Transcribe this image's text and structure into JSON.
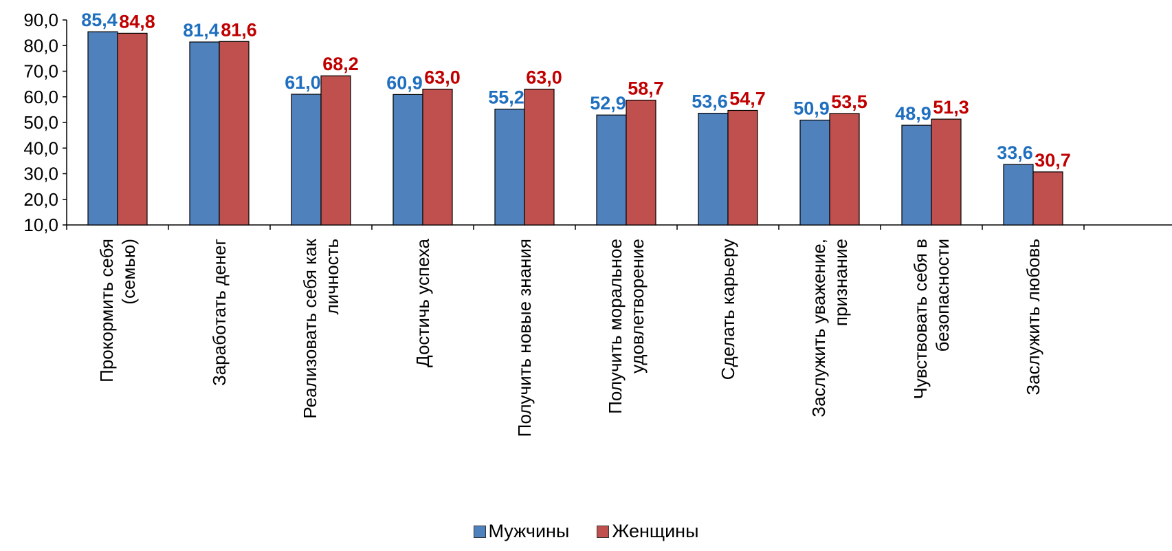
{
  "chart_data": {
    "type": "bar",
    "title": "",
    "xlabel": "",
    "ylabel": "",
    "ylim": [
      10,
      90
    ],
    "y_ticks": [
      "10,0",
      "20,0",
      "30,0",
      "40,0",
      "50,0",
      "60,0",
      "70,0",
      "80,0",
      "90,0"
    ],
    "grid": false,
    "legend_position": "bottom",
    "categories": [
      [
        "Прокормить  себя",
        "(семью)"
      ],
      [
        "Заработать денег"
      ],
      [
        "Реализовать себя как",
        "личность"
      ],
      [
        "Достичь успеха"
      ],
      [
        "Получить новые  знания"
      ],
      [
        "Получить моральное",
        "удовлетворение"
      ],
      [
        "Сделать  карьеру"
      ],
      [
        "Заслужить уважение,",
        "признание"
      ],
      [
        "Чувствовать себя в",
        "безопасности"
      ],
      [
        "Заслужить любовь"
      ]
    ],
    "series": [
      {
        "name": "Мужчины",
        "color": "#4F81BD",
        "label_color": "#1F6FBF",
        "values": [
          85.4,
          81.4,
          61.0,
          60.9,
          55.2,
          52.9,
          53.6,
          50.9,
          48.9,
          33.6
        ],
        "labels": [
          "85,4",
          "81,4",
          "61,0",
          "60,9",
          "55,2",
          "52,9",
          "53,6",
          "50,9",
          "48,9",
          "33,6"
        ]
      },
      {
        "name": "Женщины",
        "color": "#C0504D",
        "label_color": "#C00000",
        "values": [
          84.8,
          81.6,
          68.2,
          63.0,
          63.0,
          58.7,
          54.7,
          53.5,
          51.3,
          30.7
        ],
        "labels": [
          "84,8",
          "81,6",
          "68,2",
          "63,0",
          "63,0",
          "58,7",
          "54,7",
          "53,5",
          "51,3",
          "30,7"
        ]
      }
    ]
  }
}
